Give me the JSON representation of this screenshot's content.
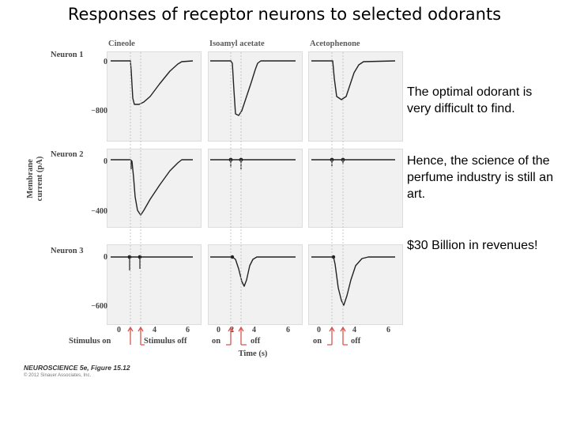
{
  "slide": {
    "title": "Responses of receptor neurons to selected odorants"
  },
  "figure": {
    "odorants": [
      "Cineole",
      "Isoamyl acetate",
      "Acetophenone"
    ],
    "neurons": [
      {
        "label": "Neuron 1",
        "yticks": [
          "0",
          "−800"
        ]
      },
      {
        "label": "Neuron 2",
        "yticks": [
          "0",
          "−400"
        ]
      },
      {
        "label": "Neuron 3",
        "yticks": [
          "0",
          "−600"
        ]
      }
    ],
    "y_axis_title": "Membrane current (pA)",
    "x_ticks": [
      "0",
      "2",
      "4",
      "6"
    ],
    "x_axis_title": "Time (s)",
    "stimulus": {
      "col1_on": "Stimulus on",
      "col1_off": "Stimulus off",
      "on": "on",
      "off": "off"
    },
    "colors": {
      "panel": "#f1f1f1",
      "trace": "#222222",
      "arrow": "#d9534f"
    },
    "caption": "NEUROSCIENCE 5e, Figure 15.12",
    "copyright": "© 2012 Sinauer Associates, Inc."
  },
  "side_text": {
    "p1": "The optimal odorant is very difficult to find.",
    "p2": "Hence, the science of the perfume industry is still an art.",
    "p3": "$30 Billion in revenues!"
  }
}
